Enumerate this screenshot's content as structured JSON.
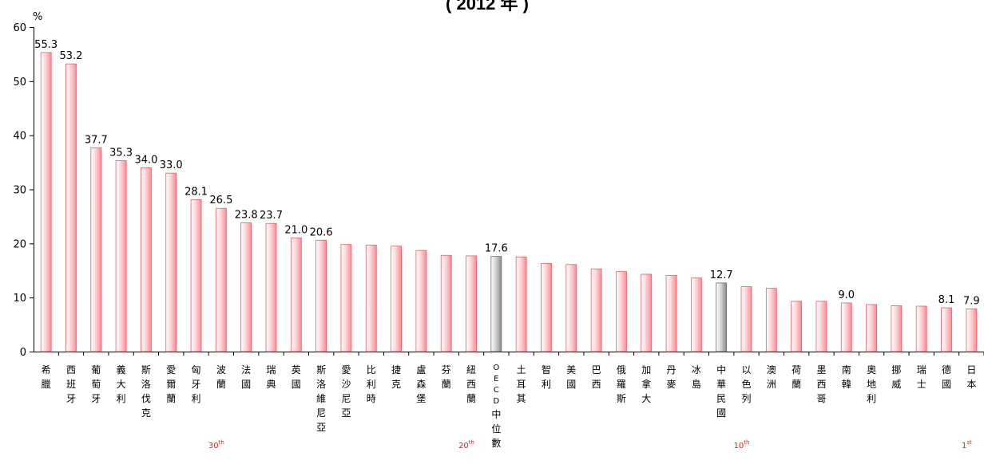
{
  "chart_data": {
    "type": "bar",
    "title": "( 2012 年 )",
    "ylabel": "%",
    "ylim": [
      0,
      60
    ],
    "yticks": [
      0,
      10,
      20,
      30,
      40,
      50,
      60
    ],
    "grid": false,
    "legend": "none",
    "categories": [
      "希臘",
      "西班牙",
      "葡萄牙",
      "義大利",
      "斯洛伐克",
      "愛爾蘭",
      "匈牙利",
      "波蘭",
      "法國",
      "瑞典",
      "英國",
      "斯洛維尼亞",
      "愛沙尼亞",
      "比利時",
      "捷克",
      "盧森堡",
      "芬蘭",
      "紐西蘭",
      "OECD中位數",
      "土耳其",
      "智利",
      "美國",
      "巴西",
      "俄羅斯",
      "加拿大",
      "丹麥",
      "冰島",
      "中華民國",
      "以色列",
      "澳洲",
      "荷蘭",
      "墨西哥",
      "南韓",
      "奧地利",
      "挪威",
      "瑞士",
      "德國",
      "日本"
    ],
    "values": [
      55.3,
      53.2,
      37.7,
      35.3,
      34.0,
      33.0,
      28.1,
      26.5,
      23.8,
      23.7,
      21.0,
      20.6,
      19.8,
      19.7,
      19.5,
      18.7,
      17.8,
      17.7,
      17.6,
      17.5,
      16.3,
      16.1,
      15.3,
      14.8,
      14.3,
      14.1,
      13.6,
      12.7,
      12.0,
      11.7,
      9.3,
      9.3,
      9.0,
      8.7,
      8.5,
      8.4,
      8.1,
      7.9
    ],
    "data_labels": [
      {
        "category": "希臘",
        "text": "55.3"
      },
      {
        "category": "西班牙",
        "text": "53.2"
      },
      {
        "category": "葡萄牙",
        "text": "37.7"
      },
      {
        "category": "義大利",
        "text": "35.3"
      },
      {
        "category": "斯洛伐克",
        "text": "34.0"
      },
      {
        "category": "愛爾蘭",
        "text": "33.0"
      },
      {
        "category": "匈牙利",
        "text": "28.1"
      },
      {
        "category": "波蘭",
        "text": "26.5"
      },
      {
        "category": "法國",
        "text": "23.8"
      },
      {
        "category": "瑞典",
        "text": "23.7"
      },
      {
        "category": "英國",
        "text": "21.0"
      },
      {
        "category": "斯洛維尼亞",
        "text": "20.6"
      },
      {
        "category": "OECD中位數",
        "text": "17.6"
      },
      {
        "category": "中華民國",
        "text": "12.7"
      },
      {
        "category": "南韓",
        "text": "9.0"
      },
      {
        "category": "德國",
        "text": "8.1"
      },
      {
        "category": "日本",
        "text": "7.9"
      }
    ],
    "highlighted": [
      "OECD中位數",
      "中華民國"
    ],
    "rank_markers": [
      {
        "category": "波蘭",
        "rank": "30",
        "suffix": "th"
      },
      {
        "category": "紐西蘭",
        "rank": "20",
        "suffix": "th"
      },
      {
        "category": "以色列",
        "rank": "10",
        "suffix": "th"
      },
      {
        "category": "日本",
        "rank": "1",
        "suffix": "st"
      }
    ],
    "colors": {
      "bar_fill": "#ffc0c4",
      "bar_edge": "#e0606a",
      "highlight_fill": "#c8c8c8",
      "highlight_edge": "#707070",
      "rank_text": "#e41a1c"
    }
  }
}
